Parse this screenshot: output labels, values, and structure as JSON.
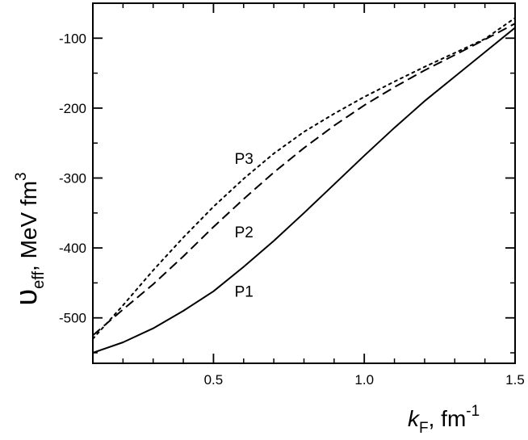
{
  "chart_data": {
    "type": "line",
    "xlabel": {
      "symbol": "k",
      "subscript": "F",
      "unit_base": ", fm",
      "unit_exponent": "-1"
    },
    "ylabel": {
      "symbol": "υ",
      "subscript": "eff",
      "unit_base": ", MeV fm",
      "unit_exponent": "3"
    },
    "xlim": [
      0.1,
      1.5
    ],
    "ylim": [
      -565,
      -50
    ],
    "xticks": [
      0.5,
      1.0,
      1.5
    ],
    "xtick_labels": [
      "0.5",
      "1.0",
      "1.5"
    ],
    "x_minor_step": 0.1,
    "yticks": [
      -500,
      -400,
      -300,
      -200,
      -100
    ],
    "ytick_labels": [
      "-500",
      "-400",
      "-300",
      "-200",
      "-100"
    ],
    "y_minor_step": 50,
    "grid": false,
    "legend": "none",
    "series": [
      {
        "name": "P1",
        "style": "solid",
        "x": [
          0.1,
          0.2,
          0.3,
          0.4,
          0.5,
          0.6,
          0.7,
          0.8,
          0.9,
          1.0,
          1.1,
          1.2,
          1.3,
          1.4,
          1.5
        ],
        "y": [
          -550,
          -535,
          -515,
          -490,
          -462,
          -427,
          -390,
          -350,
          -309,
          -268,
          -228,
          -190,
          -155,
          -120,
          -85
        ]
      },
      {
        "name": "P2",
        "style": "dashed",
        "x": [
          0.1,
          0.2,
          0.3,
          0.4,
          0.5,
          0.6,
          0.7,
          0.8,
          0.9,
          1.0,
          1.1,
          1.2,
          1.3,
          1.4,
          1.5
        ],
        "y": [
          -525,
          -488,
          -452,
          -412,
          -370,
          -330,
          -292,
          -257,
          -225,
          -196,
          -170,
          -146,
          -124,
          -102,
          -79
        ]
      },
      {
        "name": "P3",
        "style": "dotted",
        "x": [
          0.1,
          0.2,
          0.3,
          0.4,
          0.5,
          0.6,
          0.7,
          0.8,
          0.9,
          1.0,
          1.1,
          1.2,
          1.3,
          1.4,
          1.5
        ],
        "y": [
          -530,
          -482,
          -432,
          -385,
          -341,
          -301,
          -265,
          -234,
          -208,
          -184,
          -162,
          -141,
          -121,
          -101,
          -71
        ]
      }
    ],
    "annotations": [
      {
        "text": "P3",
        "x": 0.57,
        "y": -280
      },
      {
        "text": "P2",
        "x": 0.57,
        "y": -385
      },
      {
        "text": "P1",
        "x": 0.57,
        "y": -470
      }
    ]
  }
}
